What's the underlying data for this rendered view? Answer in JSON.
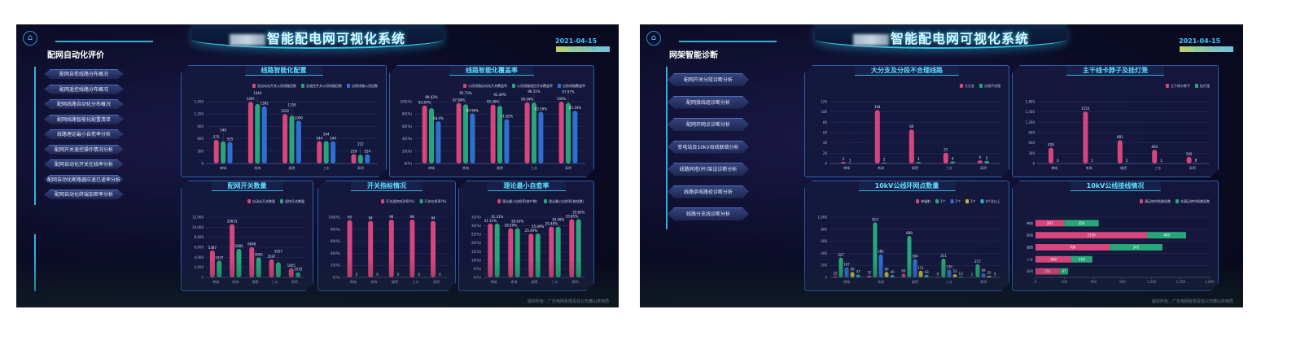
{
  "left": {
    "system_title": "智能配电网可视化系统",
    "date": "2021-04-15",
    "time": "13 : 52 PM",
    "section_title": "配网自动化评价",
    "menu": [
      "配网自愈线路分布概况",
      "配网遥控线路分布概况",
      "配网线路自动化分布概况",
      "配网线路智能化配置清单",
      "线路理论最小自愈率分析",
      "配网开关遥控操作情况分析",
      "配网自动化开关在线率分析",
      "配网自动化断路器应遥已遥率分析",
      "配网自动化终端加密率分析"
    ],
    "footer": "版权所有：广东电网有限责任公司佛山供电局"
  },
  "right": {
    "system_title": "智能配电网可视化系统",
    "date": "2021-04-15",
    "time": "13 : 52 PM",
    "section_title": "网架智能诊断",
    "menu": [
      "配网开关分段诊断分析",
      "配网接线组诊断分析",
      "配网环网点诊断分析",
      "变电站及10kV母线联络分析",
      "线路同塔(杆)架设诊断分析",
      "线路供电路径诊断分析",
      "线路分支线诊断分析"
    ],
    "footer": "版权所有：广东电网有限责任公司佛山供电局"
  },
  "icons": {
    "home": "home-icon"
  },
  "colors": {
    "pink": "#d6457c",
    "green": "#27a679",
    "blue": "#2f6fd2",
    "yellow": "#c8b640",
    "cyan": "#1eb6cc",
    "accent": "#5ee0ff"
  },
  "chart_data": [
    {
      "id": "c1",
      "type": "bar",
      "title": "线路智能化配置",
      "categories": [
        "禅城",
        "南海",
        "顺德",
        "三水",
        "高明"
      ],
      "ylim": [
        0,
        1500
      ],
      "ytick_step": 300,
      "tick_format": "comma",
      "grid": true,
      "legend": "top-right",
      "series": [
        {
          "name": "含自动化开关公用线路回数",
          "color": "#d6457c",
          "values": [
            575,
            1497,
            1202,
            544,
            229
          ]
        },
        {
          "name": "含遥控开关公用线路回数",
          "color": "#27a679",
          "values": [
            540,
            1444,
            1159,
            544,
            212
          ]
        },
        {
          "name": "自愈线路公用回数",
          "color": "#2f6fd2",
          "values": [
            525,
            1392,
            1040,
            544,
            224
          ]
        }
      ]
    },
    {
      "id": "c2",
      "type": "bar",
      "title": "线路智能化覆盖率",
      "categories": [
        "禅城",
        "南海",
        "顺德",
        "三水",
        "高明"
      ],
      "ylim": [
        0,
        100
      ],
      "ytick_step": 20,
      "tick_format": "pct",
      "value_suffix": "%",
      "grid": true,
      "legend": "top-right",
      "series": [
        {
          "name": "公用线路自动化开关覆盖率",
          "color": "#d6457c",
          "values": [
            93.87,
            97.84,
            95.26,
            99.04,
            100
          ]
        },
        {
          "name": "公用线路遥控开关覆盖率",
          "color": "#27a679",
          "values": [
            89.43,
            95.73,
            93.49,
            98.51,
            97.97
          ]
        },
        {
          "name": "自愈线路覆盖率",
          "color": "#2f6fd2",
          "values": [
            68.4,
            80.96,
            71.82,
            83.59,
            85.34
          ]
        }
      ]
    },
    {
      "id": "c3",
      "type": "bar",
      "title": "配网开关数量",
      "categories": [
        "禅城",
        "南海",
        "顺德",
        "三水",
        "高明"
      ],
      "ylim": [
        0,
        12000
      ],
      "ytick_step": 2000,
      "tick_format": "comma",
      "grid": true,
      "legend": "top-right",
      "series": [
        {
          "name": "自动化开关数量",
          "color": "#d6457c",
          "values": [
            5387,
            10615,
            6046,
            3597,
            1805
          ]
        },
        {
          "name": "遥控开关数量",
          "color": "#27a679",
          "values": [
            3337,
            5682,
            3965,
            3027,
            1018
          ]
        }
      ]
    },
    {
      "id": "c4",
      "type": "bar",
      "title": "开关指标情况",
      "categories": [
        "禅城",
        "南海",
        "顺德",
        "三水",
        "高明"
      ],
      "ylim": [
        0,
        100
      ],
      "ytick_step": 20,
      "tick_format": "pct",
      "grid": true,
      "legend": "top-right",
      "series": [
        {
          "name": "开关遥控成功率(%)",
          "color": "#d6457c",
          "values": [
            95,
            94,
            96,
            96,
            94
          ]
        },
        {
          "name": "开关在线率(%)",
          "color": "#27a679",
          "values": [
            0,
            0,
            0,
            0,
            0
          ]
        }
      ]
    },
    {
      "id": "c5",
      "type": "bar",
      "title": "理论最小自愈率",
      "categories": [
        "禅城",
        "南海",
        "顺德",
        "三水",
        "高明"
      ],
      "ylim": [
        0,
        35
      ],
      "ytick_step": 5,
      "tick_format": "pct",
      "value_suffix": "%",
      "grid": true,
      "legend": "top-right",
      "series": [
        {
          "name": "理论最小自愈率(按户数)",
          "color": "#d6457c",
          "values": [
            31.31,
            28.59,
            25.49,
            29.48,
            33.85
          ]
        },
        {
          "name": "理论最小自愈率(按线路)",
          "color": "#27a679",
          "values": [
            31.31,
            28.62,
            25.49,
            29.48,
            33.85
          ]
        }
      ]
    },
    {
      "id": "c6",
      "type": "bar",
      "title": "大分支及分段不合理线路",
      "categories": [
        "禅城",
        "南海",
        "顺德",
        "三水",
        "高明"
      ],
      "ylim": [
        0,
        120
      ],
      "ytick_step": 20,
      "tick_format": "comma",
      "grid": true,
      "legend": "top-right",
      "series": [
        {
          "name": "大分支",
          "color": "#d6457c",
          "values": [
            3,
            104,
            66,
            21,
            6
          ]
        },
        {
          "name": "分段不合理",
          "color": "#27a679",
          "values": [
            1,
            2,
            3,
            4,
            5
          ]
        }
      ]
    },
    {
      "id": "c7",
      "type": "bar",
      "title": "主干线卡脖子及挂灯笼",
      "categories": [
        "禅城",
        "南海",
        "顺德",
        "三水",
        "高明"
      ],
      "ylim": [
        0,
        1800
      ],
      "ytick_step": 300,
      "tick_format": "comma",
      "grid": true,
      "legend": "top-right",
      "series": [
        {
          "name": "主干线卡脖子",
          "color": "#d6457c",
          "values": [
            459,
            1515,
            681,
            400,
            195
          ]
        },
        {
          "name": "挂灯笼",
          "color": "#27a679",
          "values": [
            0,
            1,
            5,
            2,
            8
          ]
        }
      ]
    },
    {
      "id": "c8",
      "type": "bar",
      "title": "10kV公线环网点数量",
      "categories": [
        "禅城",
        "南海",
        "顺德",
        "三水",
        "高明"
      ],
      "ylim": [
        0,
        1000
      ],
      "ytick_step": 200,
      "tick_format": "comma",
      "grid": true,
      "legend": "top-right",
      "series": [
        {
          "name": "单辐射",
          "color": "#d6457c",
          "values": [
            22,
            32,
            60,
            9,
            2
          ]
        },
        {
          "name": "1个",
          "color": "#27a679",
          "values": [
            327,
            913,
            689,
            311,
            217
          ]
        },
        {
          "name": "2个",
          "color": "#2f6fd2",
          "values": [
            167,
            382,
            304,
            130,
            69
          ]
        },
        {
          "name": "3个",
          "color": "#c8b640",
          "values": [
            90,
            90,
            111,
            53,
            25
          ]
        },
        {
          "name": "4个及以上",
          "color": "#1eb6cc",
          "values": [
            47,
            40,
            43,
            13,
            9
          ]
        }
      ]
    },
    {
      "id": "c9",
      "type": "bar",
      "orientation": "horizontal",
      "stacked": true,
      "title": "10kV公线接线情况",
      "categories": [
        "禅城",
        "南海",
        "顺德",
        "三水",
        "高明"
      ],
      "xlim": [
        0,
        1800
      ],
      "xtick_step": 300,
      "tick_format": "comma",
      "grid": true,
      "legend": "top-right",
      "series": [
        {
          "name": "满足转供线路条数",
          "color": "#d6457c",
          "values": [
            297,
            1156,
            766,
            369,
            251
          ]
        },
        {
          "name": "非满足转供线路条数",
          "color": "#27a679",
          "values": [
            356,
            400,
            545,
            218,
            87
          ]
        }
      ]
    }
  ]
}
